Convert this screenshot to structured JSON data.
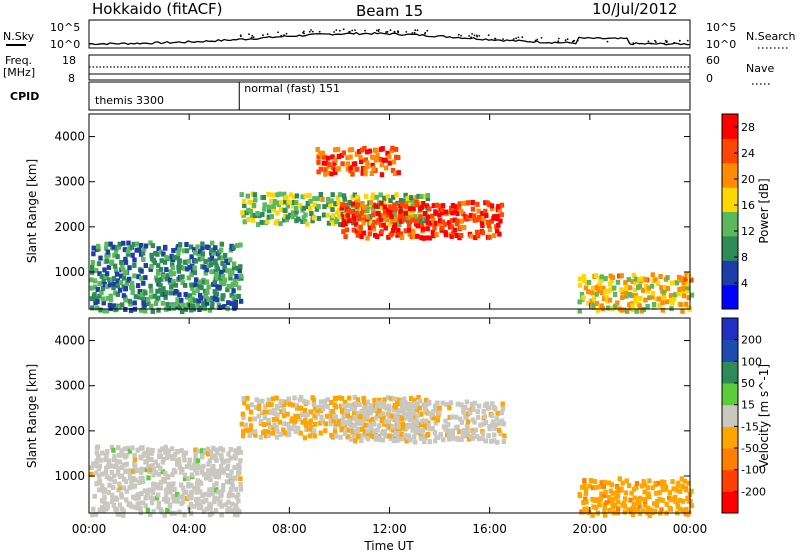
{
  "header": {
    "station": "Hokkaido (fitACF)",
    "beam": "Beam 15",
    "date": "10/Jul/2012"
  },
  "top_panels": {
    "nsky_label": "N.Sky",
    "nsky_ticks": [
      "10^5",
      "10^0"
    ],
    "nsearch_label": "N.Search",
    "nsearch_ticks": [
      "10^5",
      "10^0"
    ],
    "freq_label_1": "Freq.",
    "freq_label_2": "[MHz]",
    "freq_ticks": [
      "18",
      "8"
    ],
    "nave_label": "Nave",
    "nave_ticks": [
      "60",
      "0"
    ],
    "cpid_label": "CPID",
    "cpid_segments": [
      {
        "label": "themis 3300",
        "start_hour": 0.0
      },
      {
        "label": "normal (fast) 151",
        "start_hour": 6.0
      }
    ]
  },
  "chart_data": [
    {
      "type": "heatmap",
      "title": "",
      "xlabel": "Time UT",
      "ylabel": "Slant Range [km]",
      "x_ticks": [
        "00:00",
        "04:00",
        "08:00",
        "12:00",
        "16:00",
        "20:00",
        "00:00"
      ],
      "xlim_hours": [
        0,
        24
      ],
      "y_ticks": [
        "1000",
        "2000",
        "3000",
        "4000"
      ],
      "ylim": [
        180,
        4500
      ],
      "colorbar": {
        "label": "Power [dB]",
        "ticks": [
          "4",
          "8",
          "12",
          "16",
          "20",
          "24",
          "28"
        ],
        "range": [
          0,
          30
        ],
        "colors": [
          "#0000ff",
          "#1e3caa",
          "#2e8b57",
          "#5cb85c",
          "#ffd700",
          "#ff8c00",
          "#ff4500",
          "#ff0000"
        ]
      },
      "features": [
        {
          "region": "near-range band",
          "hours": [
            0,
            6
          ],
          "range_km": [
            180,
            1700
          ],
          "power_db": 10
        },
        {
          "region": "diagonal arc",
          "hours": [
            6,
            13.5
          ],
          "range_km": [
            2100,
            2800
          ],
          "power_db": 14
        },
        {
          "region": "strong echo band",
          "hours": [
            10,
            16.5
          ],
          "range_km": [
            1800,
            2600
          ],
          "power_db": 26
        },
        {
          "region": "high-range patch",
          "hours": [
            9,
            12.5
          ],
          "range_km": [
            3200,
            3800
          ],
          "power_db": 24
        },
        {
          "region": "evening near-range band",
          "hours": [
            19.5,
            24
          ],
          "range_km": [
            180,
            1000
          ],
          "power_db": 18
        }
      ]
    },
    {
      "type": "heatmap",
      "title": "",
      "xlabel": "Time UT",
      "ylabel": "Slant Range [km]",
      "x_ticks": [
        "00:00",
        "04:00",
        "08:00",
        "12:00",
        "16:00",
        "20:00",
        "00:00"
      ],
      "xlim_hours": [
        0,
        24
      ],
      "y_ticks": [
        "1000",
        "2000",
        "3000",
        "4000"
      ],
      "ylim": [
        180,
        4500
      ],
      "colorbar": {
        "label": "Velocity [m s^-1]",
        "ticks": [
          "200",
          "100",
          "50",
          "15",
          "-15",
          "-50",
          "-100",
          "-200"
        ],
        "range": [
          -250,
          250
        ],
        "colors": [
          "#2030c0",
          "#1e4bb0",
          "#2e8b57",
          "#5ccc3c",
          "#c8c8c0",
          "#ffa500",
          "#ff8000",
          "#ff4000",
          "#ff0000"
        ]
      },
      "features": [
        {
          "region": "near-range band",
          "hours": [
            0,
            6
          ],
          "range_km": [
            180,
            1700
          ],
          "velocity_ms": 0
        },
        {
          "region": "diagonal arc",
          "hours": [
            6,
            13.5
          ],
          "range_km": [
            1900,
            2800
          ],
          "velocity_ms": -30
        },
        {
          "region": "main echo band",
          "hours": [
            10,
            16.5
          ],
          "range_km": [
            1800,
            2700
          ],
          "velocity_ms": -10
        },
        {
          "region": "evening band",
          "hours": [
            19.5,
            24
          ],
          "range_km": [
            180,
            1000
          ],
          "velocity_ms": -60
        }
      ]
    }
  ]
}
